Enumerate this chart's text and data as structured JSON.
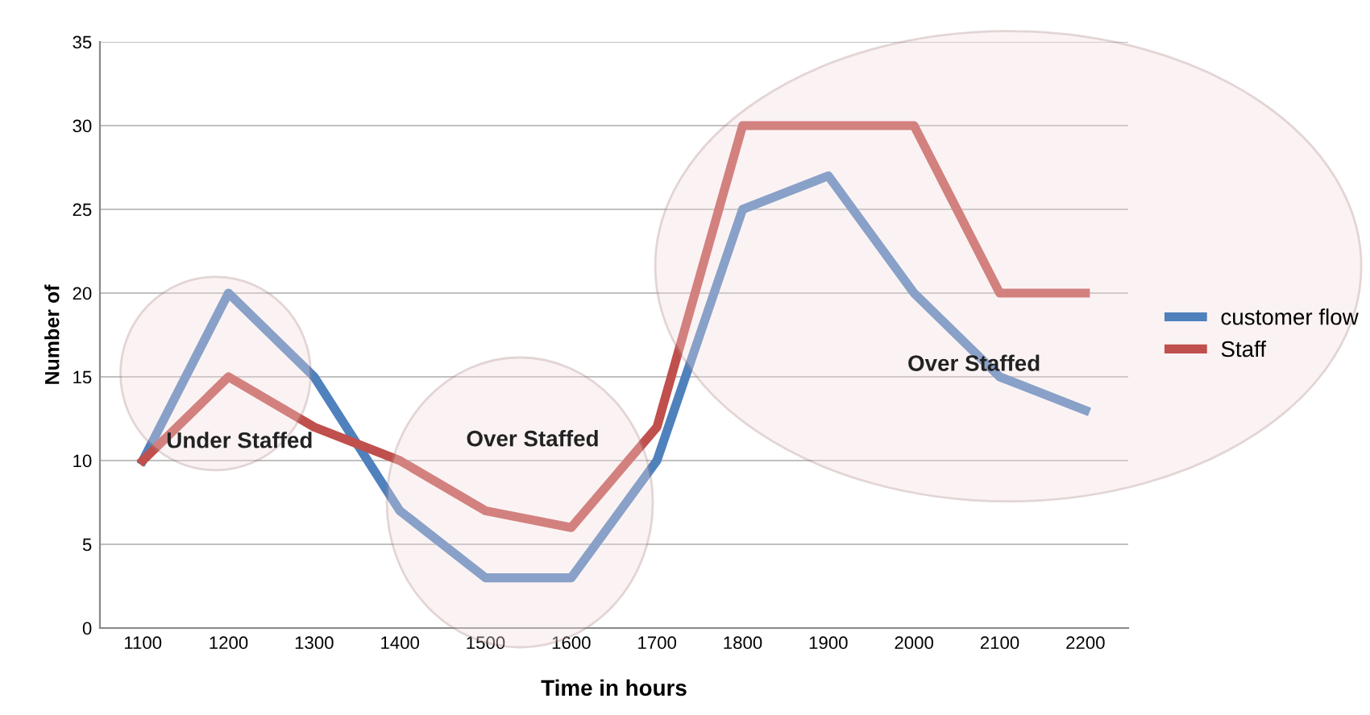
{
  "chart_data": {
    "type": "line",
    "xlabel": "Time in hours",
    "ylabel": "Number of",
    "categories": [
      "1100",
      "1200",
      "1300",
      "1400",
      "1500",
      "1600",
      "1700",
      "1800",
      "1900",
      "2000",
      "2100",
      "2200"
    ],
    "series": [
      {
        "name": "customer flow",
        "color": "#4f81bd",
        "values": [
          10,
          20,
          15,
          7,
          3,
          3,
          10,
          25,
          27,
          20,
          15,
          13
        ]
      },
      {
        "name": "Staff",
        "color": "#c0504d",
        "values": [
          10,
          15,
          12,
          10,
          7,
          6,
          12,
          30,
          30,
          30,
          20,
          20
        ]
      }
    ],
    "ylim": [
      0,
      35
    ],
    "yticks": [
      0,
      5,
      10,
      15,
      20,
      25,
      30,
      35
    ],
    "grid": "y",
    "legend": "right",
    "line_style": "solid",
    "marker": "none",
    "annotations": [
      "Under Staffed",
      "Over Staffed",
      "Over Staffed"
    ]
  }
}
